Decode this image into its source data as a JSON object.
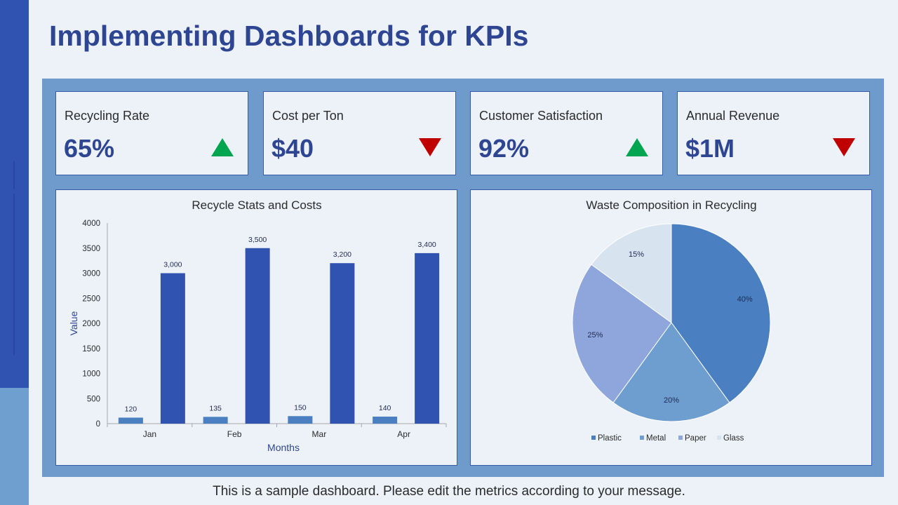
{
  "title": "Implementing Dashboards for KPIs",
  "kpis": [
    {
      "label": "Recycling Rate",
      "value": "65%",
      "trend": "up"
    },
    {
      "label": "Cost per Ton",
      "value": "$40",
      "trend": "down"
    },
    {
      "label": "Customer Satisfaction",
      "value": "92%",
      "trend": "up"
    },
    {
      "label": "Annual Revenue",
      "value": "$1M",
      "trend": "down"
    }
  ],
  "colors": {
    "up": "#00a550",
    "down": "#c00000",
    "accent": "#2e4592"
  },
  "chart_data": [
    {
      "type": "bar",
      "title": "Recycle Stats and Costs",
      "xlabel": "Months",
      "ylabel": "Value",
      "categories": [
        "Jan",
        "Feb",
        "Mar",
        "Apr"
      ],
      "ylim": [
        0,
        4000
      ],
      "yticks": [
        0,
        500,
        1000,
        1500,
        2000,
        2500,
        3000,
        3500,
        4000
      ],
      "series": [
        {
          "values": [
            120,
            135,
            150,
            140
          ],
          "labels": [
            "120",
            "135",
            "150",
            "140"
          ],
          "color": "#4a7fc1"
        },
        {
          "values": [
            3000,
            3500,
            3200,
            3400
          ],
          "labels": [
            "3,000",
            "3,500",
            "3,200",
            "3,400"
          ],
          "color": "#3052b1"
        }
      ],
      "grid": false,
      "legend": "none"
    },
    {
      "type": "pie",
      "title": "Waste Composition in Recycling",
      "categories": [
        "Plastic",
        "Metal",
        "Paper",
        "Glass"
      ],
      "values": [
        40,
        20,
        25,
        15
      ],
      "labels": [
        "40%",
        "20%",
        "25%",
        "15%"
      ],
      "colors": [
        "#4a7fc1",
        "#6e9dcf",
        "#8fa6dd",
        "#d8e3f0"
      ],
      "legend": "bottom"
    }
  ],
  "footer": "This is a sample dashboard. Please edit the metrics according to your message."
}
